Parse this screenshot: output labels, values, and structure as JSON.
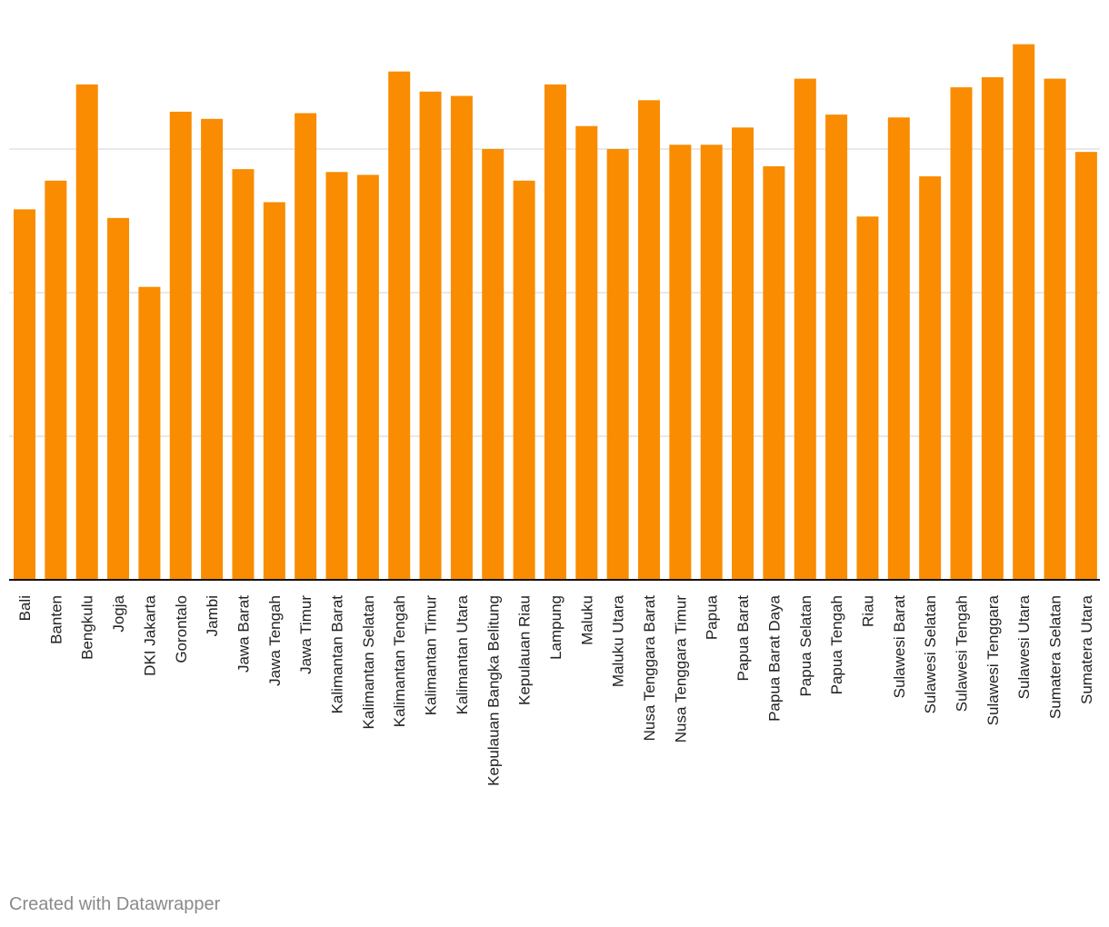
{
  "chart_data": {
    "type": "bar",
    "categories": [
      "Bali",
      "Banten",
      "Bengkulu",
      "Jogja",
      "DKI Jakarta",
      "Gorontalo",
      "Jambi",
      "Jawa Barat",
      "Jawa Tengah",
      "Jawa Timur",
      "Kalimantan Barat",
      "Kalimantan Selatan",
      "Kalimantan Tengah",
      "Kalimantan Timur",
      "Kalimantan Utara",
      "Kepulauan Bangka Belitung",
      "Kepulauan Riau",
      "Lampung",
      "Maluku",
      "Maluku Utara",
      "Nusa Tenggara Barat",
      "Nusa Tenggara Timur",
      "Papua",
      "Papua Barat",
      "Papua Barat Daya",
      "Papua Selatan",
      "Papua Tengah",
      "Riau",
      "Sulawesi Barat",
      "Sulawesi Selatan",
      "Sulawesi Tengah",
      "Sulawesi Tenggara",
      "Sulawesi Utara",
      "Sumatera Selatan",
      "Sumatera Utara"
    ],
    "values": [
      2.58,
      2.78,
      3.45,
      2.52,
      2.04,
      3.26,
      3.21,
      2.86,
      2.63,
      3.25,
      2.84,
      2.82,
      3.54,
      3.4,
      3.37,
      3.0,
      2.78,
      3.45,
      3.16,
      3.0,
      3.34,
      3.03,
      3.03,
      3.15,
      2.88,
      3.49,
      3.24,
      2.53,
      3.22,
      2.81,
      3.43,
      3.5,
      3.73,
      3.49,
      2.98
    ],
    "title": "",
    "xlabel": "",
    "ylabel": "",
    "ylim": [
      0,
      4
    ],
    "gridlines": [
      1,
      2,
      3
    ],
    "grid": true,
    "bar_color": "#f98c00",
    "grid_color": "#e2e2e2",
    "axis_color": "#111111"
  },
  "footer": {
    "credit": "Created with Datawrapper"
  }
}
